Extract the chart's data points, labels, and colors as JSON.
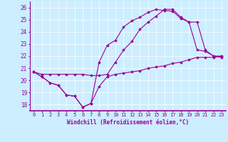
{
  "xlabel": "Windchill (Refroidissement éolien,°C)",
  "bg_color": "#cceeff",
  "line_color": "#990099",
  "grid_color": "#aaddcc",
  "xlim": [
    -0.5,
    23.5
  ],
  "ylim": [
    17.5,
    26.5
  ],
  "yticks": [
    18,
    19,
    20,
    21,
    22,
    23,
    24,
    25,
    26
  ],
  "xticks": [
    0,
    1,
    2,
    3,
    4,
    5,
    6,
    7,
    8,
    9,
    10,
    11,
    12,
    13,
    14,
    15,
    16,
    17,
    18,
    19,
    20,
    21,
    22,
    23
  ],
  "series": [
    [
      20.7,
      20.3,
      19.8,
      19.6,
      18.8,
      18.7,
      17.8,
      18.1,
      19.5,
      20.3,
      20.5,
      20.6,
      20.7,
      20.8,
      21.0,
      21.1,
      21.2,
      21.4,
      21.5,
      21.7,
      21.9,
      21.9,
      21.9,
      22.0
    ],
    [
      20.7,
      20.3,
      19.8,
      19.6,
      18.8,
      18.7,
      17.8,
      18.1,
      21.5,
      22.9,
      23.3,
      24.4,
      24.9,
      25.2,
      25.6,
      25.85,
      25.75,
      25.7,
      25.1,
      24.8,
      22.5,
      22.4,
      22.0,
      21.9
    ],
    [
      20.7,
      20.5,
      20.5,
      20.5,
      20.5,
      20.5,
      20.5,
      20.4,
      20.4,
      20.5,
      21.5,
      22.5,
      23.2,
      24.2,
      24.8,
      25.3,
      25.85,
      25.85,
      25.2,
      24.8,
      24.8,
      22.5,
      22.0,
      22.0
    ]
  ]
}
